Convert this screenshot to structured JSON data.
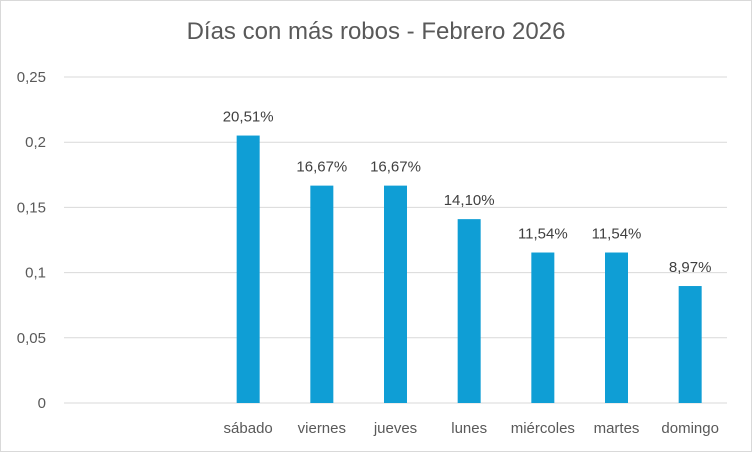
{
  "chart_data": {
    "type": "bar",
    "title": "Días con más robos - Febrero 2026",
    "xlabel": "",
    "ylabel": "",
    "categories": [
      "",
      "",
      "sábado",
      "viernes",
      "jueves",
      "lunes",
      "miércoles",
      "martes",
      "domingo"
    ],
    "values": [
      null,
      null,
      0.2051,
      0.1667,
      0.1667,
      0.141,
      0.1154,
      0.1154,
      0.0897
    ],
    "data_labels": [
      "",
      "",
      "20,51%",
      "16,67%",
      "16,67%",
      "14,10%",
      "11,54%",
      "11,54%",
      "8,97%"
    ],
    "y_ticks": [
      "0",
      "0,05",
      "0,1",
      "0,15",
      "0,2",
      "0,25"
    ],
    "ylim": [
      0,
      0.25
    ],
    "grid": true,
    "legend": "none",
    "bar_color": "#0f9ed5",
    "grid_color": "#d9d9d9"
  }
}
